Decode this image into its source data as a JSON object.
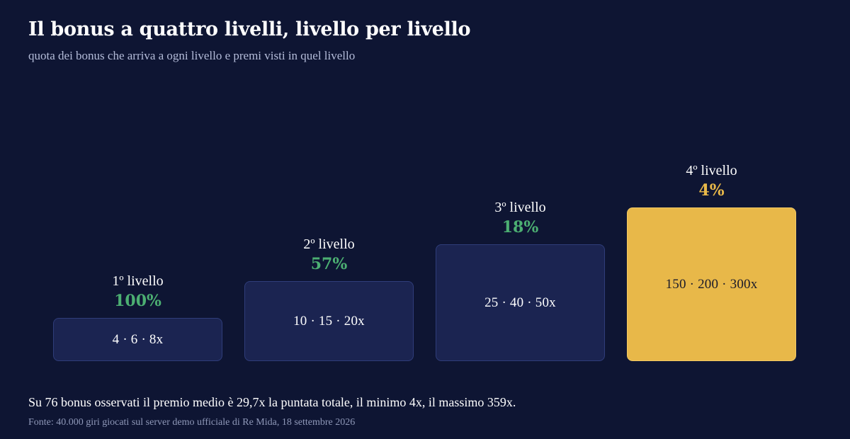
{
  "title": "Il bonus a quattro livelli, livello per livello",
  "subtitle": "quota dei bonus che arriva a ogni livello e premi visti in quel livello",
  "colors": {
    "background": "#0e1533",
    "box": "#1b2451",
    "box_border": "#2f3d7a",
    "highlight": "#e8b849",
    "percent_green": "#4caf72",
    "percent_gold": "#e8b849"
  },
  "levels": [
    {
      "label": "1º livello",
      "percent": "100%",
      "share": 100,
      "prizes": "4 · 6 · 8x",
      "highlight": false
    },
    {
      "label": "2º livello",
      "percent": "57%",
      "share": 57,
      "prizes": "10 · 15 · 20x",
      "highlight": false
    },
    {
      "label": "3º livello",
      "percent": "18%",
      "share": 18,
      "prizes": "25 · 40 · 50x",
      "highlight": false
    },
    {
      "label": "4º livello",
      "percent": "4%",
      "share": 4,
      "prizes": "150 · 200 · 300x",
      "highlight": true
    }
  ],
  "summary": "Su 76 bonus osservati il premio medio è 29,7x la puntata totale, il minimo 4x, il massimo 359x.",
  "source": "Fonte: 40.000 giri giocati sul server demo ufficiale di Re Mida, 18 settembre 2026"
}
